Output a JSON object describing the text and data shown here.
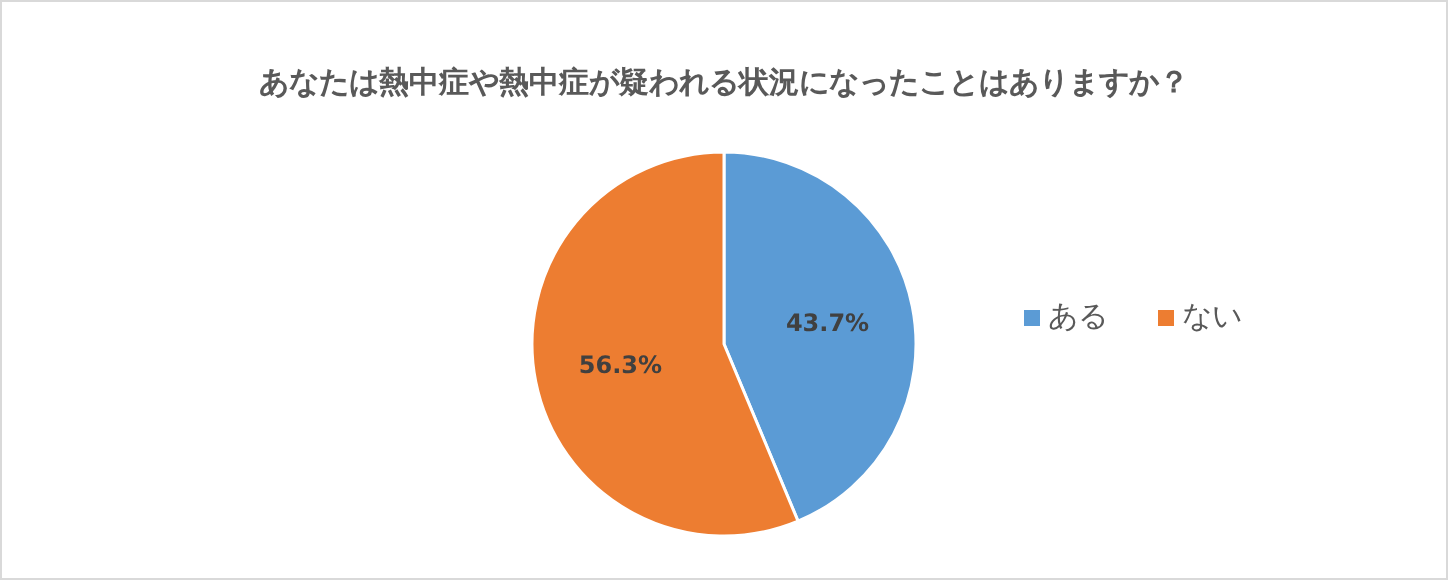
{
  "chart_data": {
    "type": "pie",
    "title": "あなたは熱中症や熱中症が疑われる状況になったことはありますか？",
    "categories": [
      "ある",
      "ない"
    ],
    "values": [
      43.7,
      56.3
    ],
    "colors": [
      "#5b9bd5",
      "#ed7d31"
    ],
    "value_labels": [
      "43.7%",
      "56.3%"
    ],
    "legend": "right"
  }
}
